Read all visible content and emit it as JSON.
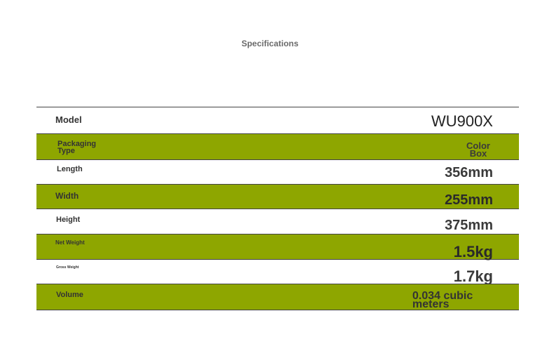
{
  "header": {
    "title": "Specifications"
  },
  "table": {
    "rows": [
      [
        "Model",
        "WU900X"
      ],
      [
        "Packaging Type",
        "Color Box"
      ],
      [
        "Length",
        "356mm"
      ],
      [
        "Width",
        "255mm"
      ],
      [
        "Height",
        "375mm"
      ],
      [
        "Net Weight",
        "1.5kg"
      ],
      [
        "Gross Weight",
        "1.7kg"
      ],
      [
        "Volume",
        "0.034 cubic meters"
      ]
    ]
  }
}
